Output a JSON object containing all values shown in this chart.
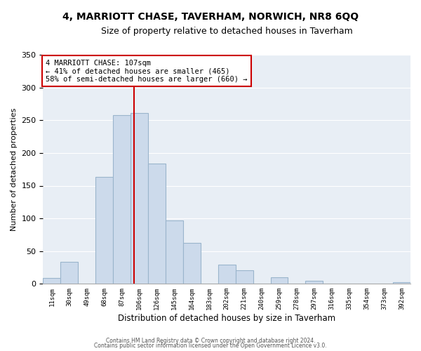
{
  "title": "4, MARRIOTT CHASE, TAVERHAM, NORWICH, NR8 6QQ",
  "subtitle": "Size of property relative to detached houses in Taverham",
  "xlabel": "Distribution of detached houses by size in Taverham",
  "ylabel": "Number of detached properties",
  "bin_labels": [
    "11sqm",
    "30sqm",
    "49sqm",
    "68sqm",
    "87sqm",
    "106sqm",
    "126sqm",
    "145sqm",
    "164sqm",
    "183sqm",
    "202sqm",
    "221sqm",
    "240sqm",
    "259sqm",
    "278sqm",
    "297sqm",
    "316sqm",
    "335sqm",
    "354sqm",
    "373sqm",
    "392sqm"
  ],
  "bar_values": [
    9,
    34,
    0,
    163,
    258,
    261,
    184,
    97,
    63,
    0,
    29,
    21,
    0,
    10,
    0,
    5,
    0,
    0,
    0,
    0,
    2
  ],
  "bar_color": "#ccdaeb",
  "bar_edge_color": "#9ab5cc",
  "marker_line_color": "#cc0000",
  "annotation_text": "4 MARRIOTT CHASE: 107sqm\n← 41% of detached houses are smaller (465)\n58% of semi-detached houses are larger (660) →",
  "annotation_box_color": "#ffffff",
  "annotation_box_edge": "#cc0000",
  "ylim": [
    0,
    350
  ],
  "yticks": [
    0,
    50,
    100,
    150,
    200,
    250,
    300,
    350
  ],
  "plot_bg_color": "#e8eef5",
  "grid_color": "#ffffff",
  "footer1": "Contains HM Land Registry data © Crown copyright and database right 2024.",
  "footer2": "Contains public sector information licensed under the Open Government Licence v3.0."
}
